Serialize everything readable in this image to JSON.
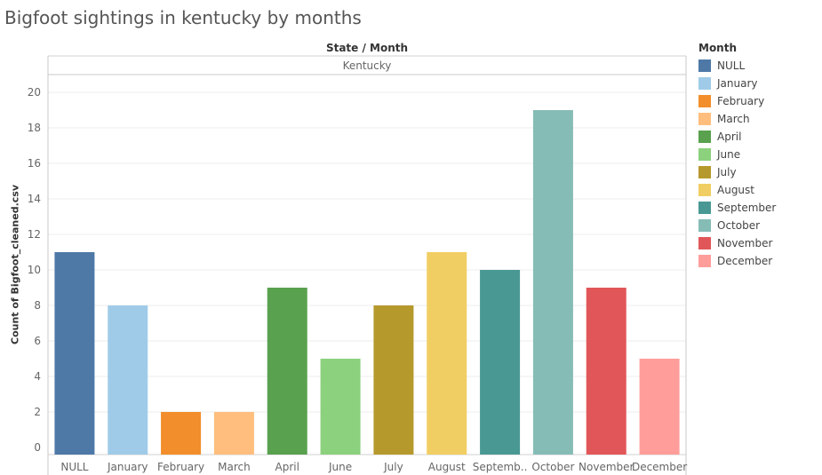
{
  "title": "Bigfoot sightings in kentucky by months",
  "header": {
    "main": "State / Month",
    "sub": "Kentucky"
  },
  "legend": {
    "title": "Month",
    "items": [
      {
        "label": "NULL",
        "color": "#4e79a7"
      },
      {
        "label": "January",
        "color": "#a0cbe8"
      },
      {
        "label": "February",
        "color": "#f28e2b"
      },
      {
        "label": "March",
        "color": "#ffbe7d"
      },
      {
        "label": "April",
        "color": "#59a14f"
      },
      {
        "label": "June",
        "color": "#8cd17d"
      },
      {
        "label": "July",
        "color": "#b6992d"
      },
      {
        "label": "August",
        "color": "#f1ce63"
      },
      {
        "label": "September",
        "color": "#499894"
      },
      {
        "label": "October",
        "color": "#86bcb6"
      },
      {
        "label": "November",
        "color": "#e15759"
      },
      {
        "label": "December",
        "color": "#ff9d9a"
      }
    ]
  },
  "chart_data": {
    "type": "bar",
    "title": "Bigfoot sightings in kentucky by months",
    "xlabel": "State / Month",
    "ylabel": "Count of Bigfoot_cleaned.csv",
    "panel": "Kentucky",
    "categories": [
      "NULL",
      "January",
      "February",
      "March",
      "April",
      "June",
      "July",
      "August",
      "Septemb..",
      "October",
      "November",
      "December"
    ],
    "values": [
      11,
      8,
      2,
      2,
      9,
      5,
      8,
      11,
      10,
      19,
      9,
      5
    ],
    "colors": [
      "#4e79a7",
      "#a0cbe8",
      "#f28e2b",
      "#ffbe7d",
      "#59a14f",
      "#8cd17d",
      "#b6992d",
      "#f1ce63",
      "#499894",
      "#86bcb6",
      "#e15759",
      "#ff9d9a"
    ],
    "ylim": [
      0,
      20
    ],
    "yticks": [
      0,
      2,
      4,
      6,
      8,
      10,
      12,
      14,
      16,
      18,
      20
    ],
    "grid": true,
    "legend_position": "right"
  }
}
